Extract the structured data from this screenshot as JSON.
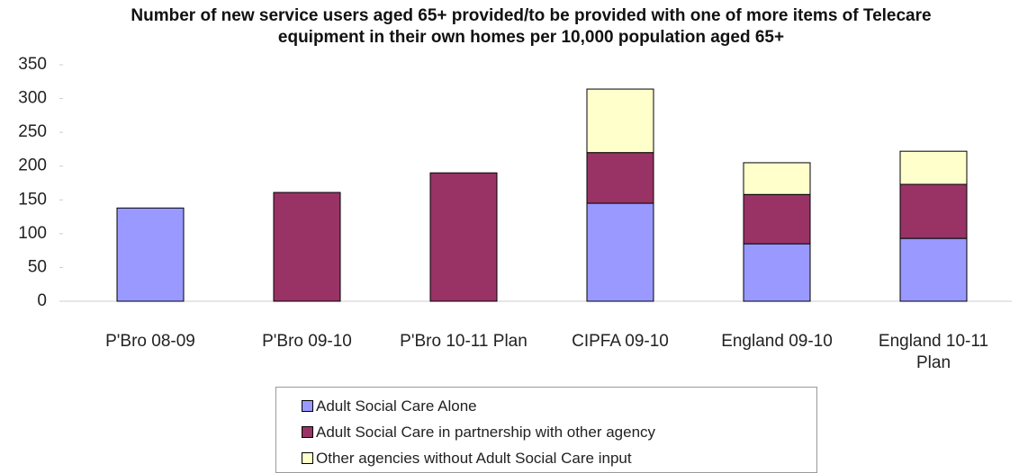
{
  "chart_data": {
    "type": "stacked_bar",
    "title": "Number of new service users aged 65+ provided/to be provided with one of more items of Telecare equipment in their own homes per 10,000 population aged 65+",
    "categories": [
      "P'Bro 08-09",
      "P'Bro 09-10",
      "P'Bro 10-11 Plan",
      "CIPFA 09-10",
      "England 09-10",
      "England 10-11 Plan"
    ],
    "series": [
      {
        "name": "Adult Social Care Alone",
        "color": "#9999ff",
        "values": [
          138,
          null,
          null,
          145,
          85,
          93
        ]
      },
      {
        "name": "Adult Social Care in partnership with other agency",
        "color": "#993366",
        "values": [
          null,
          161,
          190,
          75,
          73,
          80
        ]
      },
      {
        "name": "Other agencies without Adult Social Care input",
        "color": "#ffffcc",
        "values": [
          null,
          null,
          null,
          94,
          47,
          49
        ]
      }
    ],
    "ylim": [
      0,
      350
    ],
    "yticks": [
      0,
      50,
      100,
      150,
      200,
      250,
      300,
      350
    ],
    "grid": false
  }
}
